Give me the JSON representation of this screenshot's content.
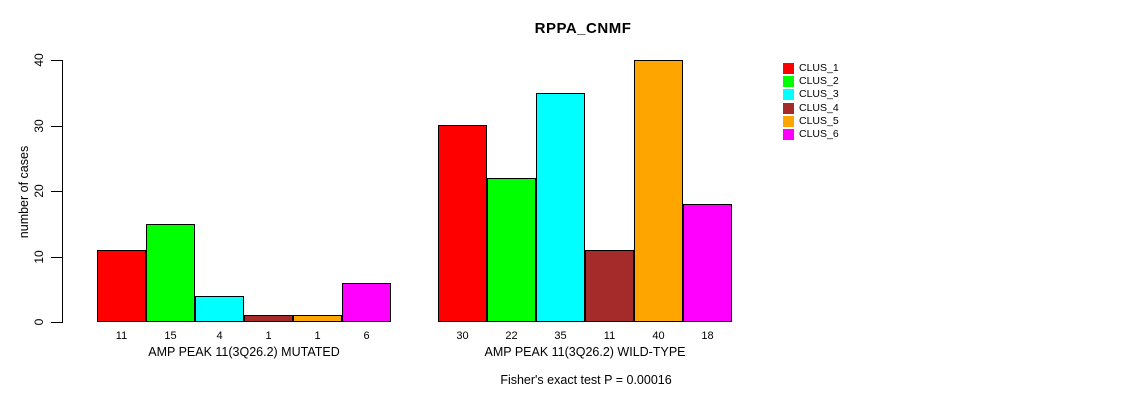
{
  "chart_data": {
    "type": "bar",
    "title": "RPPA_CNMF",
    "xlabel": "",
    "ylabel": "number of cases",
    "ylim": [
      0,
      40
    ],
    "yticks": [
      0,
      10,
      20,
      30,
      40
    ],
    "grid": false,
    "legend_position": "right",
    "bar_value_labels_shown": true,
    "categories": [
      "CLUS_1",
      "CLUS_2",
      "CLUS_3",
      "CLUS_4",
      "CLUS_5",
      "CLUS_6"
    ],
    "colors": [
      "#FF0000",
      "#00FF00",
      "#00FFFF",
      "#A52A2A",
      "#FFA500",
      "#FF00FF"
    ],
    "groups": [
      {
        "label": "AMP PEAK 11(3Q26.2) MUTATED",
        "values": [
          11,
          15,
          4,
          1,
          1,
          6
        ]
      },
      {
        "label": "AMP PEAK 11(3Q26.2) WILD-TYPE",
        "values": [
          30,
          22,
          35,
          11,
          40,
          18
        ]
      }
    ],
    "annotation": "Fisher's exact test P = 0.00016"
  }
}
